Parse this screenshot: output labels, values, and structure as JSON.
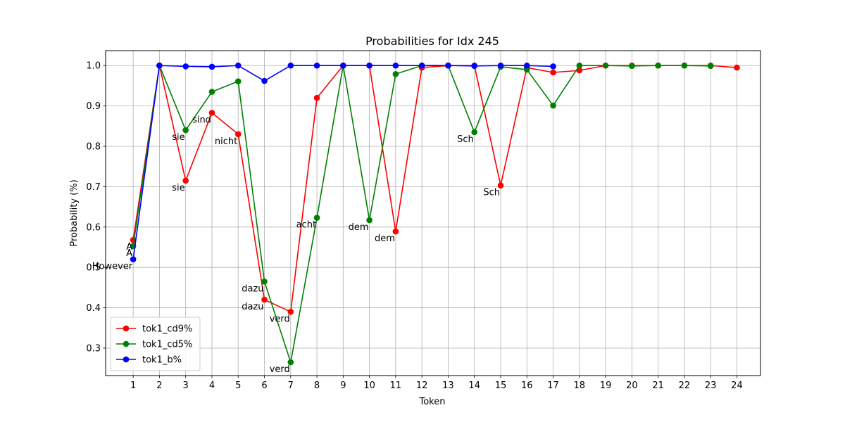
{
  "chart_data": {
    "type": "line",
    "title": "Probabilities for Idx 245",
    "xlabel": "Token",
    "ylabel": "Probability (%)",
    "xlim": [
      -0.05,
      24.9
    ],
    "ylim": [
      0.232,
      1.037
    ],
    "x_ticks": [
      1,
      2,
      3,
      4,
      5,
      6,
      7,
      8,
      9,
      10,
      11,
      12,
      13,
      14,
      15,
      16,
      17,
      18,
      19,
      20,
      21,
      22,
      23,
      24
    ],
    "y_ticks": [
      0.3,
      0.4,
      0.5,
      0.6,
      0.7,
      0.8,
      0.9,
      1.0
    ],
    "y_tick_labels": [
      "0.3",
      "0.4",
      "0.5",
      "0.6",
      "0.7",
      "0.8",
      "0.9",
      "1.0"
    ],
    "grid": true,
    "legend_position": "lower-left",
    "series": [
      {
        "name": "tok1_cd9%",
        "color": "#ff0000",
        "x": [
          1,
          2,
          3,
          4,
          5,
          6,
          7,
          8,
          9,
          10,
          11,
          12,
          13,
          14,
          15,
          16,
          17,
          18,
          19,
          20,
          21,
          22,
          23,
          24
        ],
        "y": [
          0.568,
          1.0,
          0.715,
          0.883,
          0.83,
          0.42,
          0.39,
          0.92,
          1.0,
          1.0,
          0.589,
          0.995,
          1.0,
          1.0,
          0.703,
          0.995,
          0.983,
          0.988,
          1.0,
          1.0,
          1.0,
          1.0,
          1.0,
          0.995
        ]
      },
      {
        "name": "tok1_cd5%",
        "color": "#008000",
        "x": [
          1,
          2,
          3,
          4,
          5,
          6,
          7,
          8,
          9,
          10,
          11,
          12,
          13,
          14,
          15,
          16,
          17,
          18,
          19,
          20,
          21,
          22,
          23
        ],
        "y": [
          0.553,
          1.0,
          0.84,
          0.935,
          0.961,
          0.465,
          0.265,
          0.623,
          1.0,
          0.617,
          0.979,
          1.0,
          1.0,
          0.835,
          0.997,
          0.99,
          0.901,
          1.0,
          1.0,
          0.999,
          1.0,
          1.0,
          0.999
        ]
      },
      {
        "name": "tok1_b%",
        "color": "#0000ff",
        "x": [
          1,
          2,
          3,
          4,
          5,
          6,
          7,
          8,
          9,
          10,
          11,
          12,
          13,
          14,
          15,
          16,
          17
        ],
        "y": [
          0.52,
          1.0,
          0.998,
          0.997,
          1.0,
          0.962,
          1.0,
          1.0,
          1.0,
          1.0,
          1.0,
          1.0,
          1.0,
          0.999,
          1.0,
          1.0,
          0.998
        ]
      }
    ],
    "annotations": [
      {
        "text": "However",
        "x": 1,
        "y": 0.52
      },
      {
        "text": "A",
        "x": 1,
        "y": 0.553
      },
      {
        "text": "A",
        "x": 1,
        "y": 0.568
      },
      {
        "text": "sie",
        "x": 3,
        "y": 0.84
      },
      {
        "text": "sie",
        "x": 3,
        "y": 0.715
      },
      {
        "text": "sind",
        "x": 4,
        "y": 0.883
      },
      {
        "text": "nicht",
        "x": 5,
        "y": 0.83
      },
      {
        "text": "dazu",
        "x": 6,
        "y": 0.465
      },
      {
        "text": "dazu",
        "x": 6,
        "y": 0.42
      },
      {
        "text": "verd",
        "x": 7,
        "y": 0.39
      },
      {
        "text": "verd",
        "x": 7,
        "y": 0.265
      },
      {
        "text": "acht",
        "x": 8,
        "y": 0.623
      },
      {
        "text": "dem",
        "x": 10,
        "y": 0.617
      },
      {
        "text": "dem",
        "x": 11,
        "y": 0.589
      },
      {
        "text": "Sch",
        "x": 14,
        "y": 0.835
      },
      {
        "text": "Sch",
        "x": 15,
        "y": 0.703
      }
    ]
  }
}
